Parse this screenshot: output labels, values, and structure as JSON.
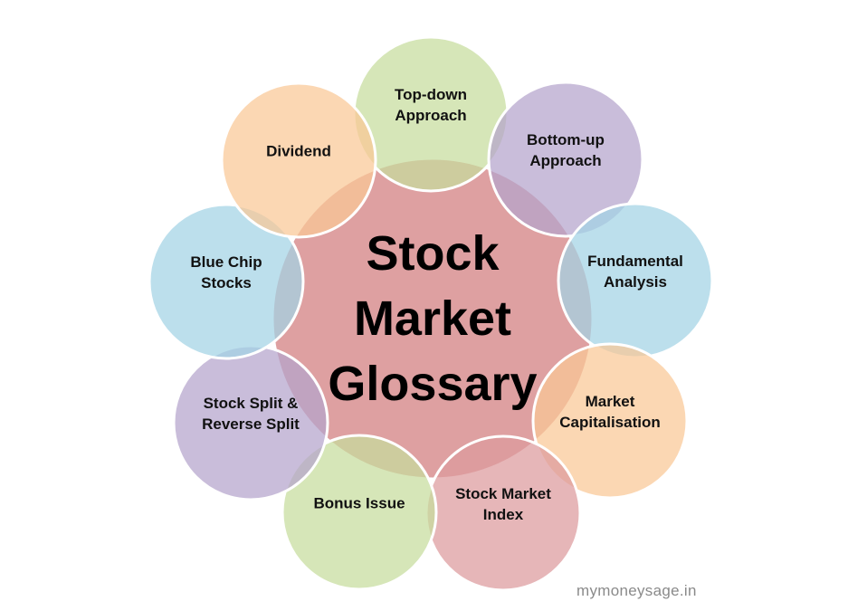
{
  "center": {
    "lines": [
      "Stock",
      "Market",
      "Glossary"
    ],
    "color": "#dea0a1"
  },
  "nodes": [
    {
      "id": "top-down-approach",
      "lines": [
        "Top-down",
        "Approach"
      ],
      "color": "#c6dc9c"
    },
    {
      "id": "bottom-up-approach",
      "lines": [
        "Bottom-up",
        "Approach"
      ],
      "color": "#b4a4cc"
    },
    {
      "id": "fundamental-analysis",
      "lines": [
        "Fundamental",
        "Analysis"
      ],
      "color": "#a2d3e4"
    },
    {
      "id": "market-capitalisation",
      "lines": [
        "Market",
        "Capitalisation"
      ],
      "color": "#f9c896"
    },
    {
      "id": "stock-market-index",
      "lines": [
        "Stock Market",
        "Index"
      ],
      "color": "#dd9a9c"
    },
    {
      "id": "bonus-issue",
      "lines": [
        "Bonus Issue"
      ],
      "color": "#c6dc9c"
    },
    {
      "id": "stock-split",
      "lines": [
        "Stock Split &",
        "Reverse Split"
      ],
      "color": "#b4a4cc"
    },
    {
      "id": "blue-chip-stocks",
      "lines": [
        "Blue Chip",
        "Stocks"
      ],
      "color": "#a2d3e4"
    },
    {
      "id": "dividend",
      "lines": [
        "Dividend"
      ],
      "color": "#f9c896"
    }
  ],
  "watermark": "mymoneysage.in"
}
